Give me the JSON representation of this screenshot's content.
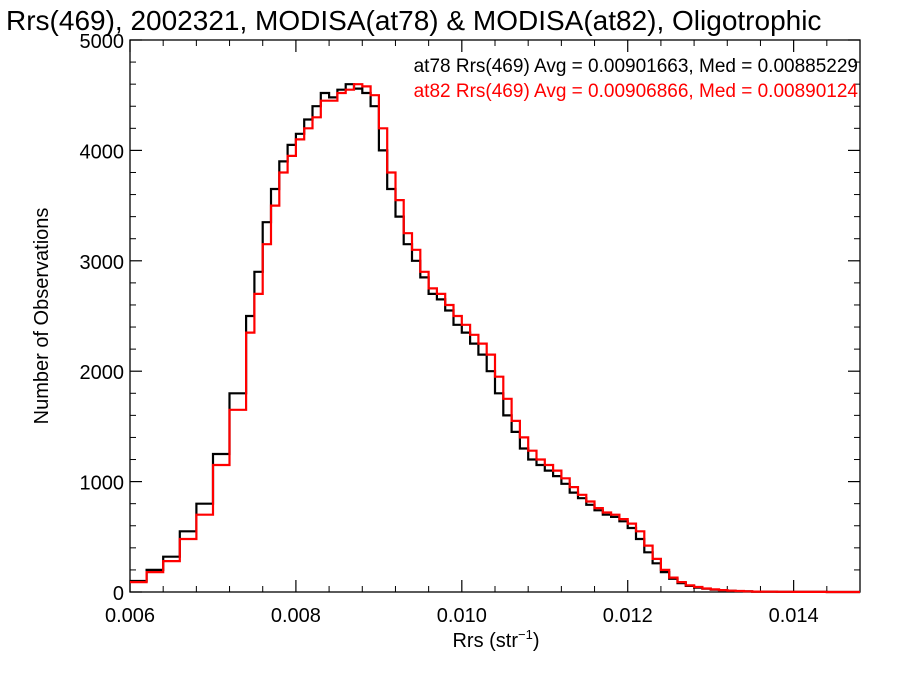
{
  "chart_data": {
    "type": "line",
    "title": "Rrs(469), 2002321, MODISA(at78) & MODISA(at82), Oligotrophic",
    "xlabel_main": "Rrs (str",
    "xlabel_sup": "−1",
    "xlabel_close": ")",
    "ylabel": "Number of Observations",
    "xlim": [
      0.006,
      0.0148
    ],
    "ylim": [
      0,
      5000
    ],
    "x_ticks": [
      0.006,
      0.008,
      0.01,
      0.012,
      0.014
    ],
    "x_tick_labels": [
      "0.006",
      "0.008",
      "0.010",
      "0.012",
      "0.014"
    ],
    "y_ticks": [
      0,
      1000,
      2000,
      3000,
      4000,
      5000
    ],
    "y_tick_labels": [
      "0",
      "1000",
      "2000",
      "3000",
      "4000",
      "5000"
    ],
    "grid": false,
    "step": true,
    "annotations": [
      {
        "text": "at78 Rrs(469) Avg = 0.00901663, Med = 0.00885229",
        "color": "#000000"
      },
      {
        "text": "at82 Rrs(469) Avg = 0.00906866, Med = 0.00890124",
        "color": "#ff0000"
      }
    ],
    "series": [
      {
        "color": "#000000",
        "x": [
          0.006,
          0.0062,
          0.0064,
          0.0066,
          0.0068,
          0.007,
          0.0072,
          0.0074,
          0.0075,
          0.0076,
          0.0077,
          0.0078,
          0.0079,
          0.008,
          0.0081,
          0.0082,
          0.0083,
          0.0084,
          0.0085,
          0.0086,
          0.0087,
          0.0088,
          0.0089,
          0.009,
          0.0091,
          0.0092,
          0.0093,
          0.0094,
          0.0095,
          0.0096,
          0.0097,
          0.0098,
          0.0099,
          0.01,
          0.0101,
          0.0102,
          0.0103,
          0.0104,
          0.0105,
          0.0106,
          0.0107,
          0.0108,
          0.0109,
          0.011,
          0.0111,
          0.0112,
          0.0113,
          0.0114,
          0.0115,
          0.0116,
          0.0117,
          0.0118,
          0.0119,
          0.012,
          0.0121,
          0.0122,
          0.0123,
          0.0124,
          0.0125,
          0.0126,
          0.0127,
          0.0128,
          0.0129,
          0.013,
          0.0131,
          0.0132,
          0.0133,
          0.0134,
          0.0135,
          0.0136,
          0.0138,
          0.014,
          0.0142,
          0.0144,
          0.0146,
          0.0148
        ],
        "y": [
          100,
          200,
          320,
          550,
          800,
          1250,
          1800,
          2500,
          2900,
          3350,
          3650,
          3900,
          4050,
          4150,
          4280,
          4400,
          4520,
          4480,
          4550,
          4600,
          4560,
          4520,
          4400,
          4000,
          3650,
          3400,
          3150,
          3000,
          2850,
          2700,
          2650,
          2550,
          2420,
          2350,
          2250,
          2150,
          2000,
          1800,
          1600,
          1450,
          1300,
          1200,
          1150,
          1100,
          1050,
          980,
          900,
          850,
          790,
          740,
          700,
          680,
          640,
          580,
          480,
          360,
          260,
          180,
          120,
          80,
          55,
          40,
          30,
          22,
          16,
          11,
          8,
          6,
          4,
          3,
          2,
          1,
          1,
          0,
          0,
          0
        ]
      },
      {
        "color": "#ff0000",
        "x": [
          0.006,
          0.0062,
          0.0064,
          0.0066,
          0.0068,
          0.007,
          0.0072,
          0.0074,
          0.0075,
          0.0076,
          0.0077,
          0.0078,
          0.0079,
          0.008,
          0.0081,
          0.0082,
          0.0083,
          0.0084,
          0.0085,
          0.0086,
          0.0087,
          0.0088,
          0.0089,
          0.009,
          0.0091,
          0.0092,
          0.0093,
          0.0094,
          0.0095,
          0.0096,
          0.0097,
          0.0098,
          0.0099,
          0.01,
          0.0101,
          0.0102,
          0.0103,
          0.0104,
          0.0105,
          0.0106,
          0.0107,
          0.0108,
          0.0109,
          0.011,
          0.0111,
          0.0112,
          0.0113,
          0.0114,
          0.0115,
          0.0116,
          0.0117,
          0.0118,
          0.0119,
          0.012,
          0.0121,
          0.0122,
          0.0123,
          0.0124,
          0.0125,
          0.0126,
          0.0127,
          0.0128,
          0.0129,
          0.013,
          0.0131,
          0.0132,
          0.0133,
          0.0134,
          0.0135,
          0.0136,
          0.0138,
          0.014,
          0.0142,
          0.0144,
          0.0146,
          0.0148
        ],
        "y": [
          90,
          180,
          280,
          480,
          700,
          1150,
          1650,
          2350,
          2700,
          3150,
          3500,
          3800,
          3950,
          4100,
          4200,
          4300,
          4450,
          4450,
          4520,
          4550,
          4600,
          4580,
          4500,
          4200,
          3800,
          3550,
          3250,
          3100,
          2900,
          2750,
          2700,
          2600,
          2500,
          2420,
          2330,
          2250,
          2150,
          1950,
          1750,
          1550,
          1400,
          1280,
          1200,
          1150,
          1100,
          1030,
          950,
          880,
          820,
          760,
          720,
          700,
          660,
          620,
          550,
          420,
          300,
          200,
          130,
          90,
          60,
          45,
          32,
          24,
          17,
          12,
          9,
          6,
          4,
          3,
          2,
          1,
          1,
          0,
          0,
          0
        ]
      }
    ]
  }
}
